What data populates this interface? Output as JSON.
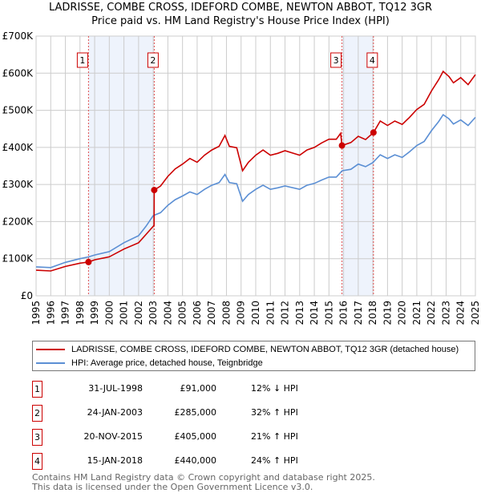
{
  "chart_data": {
    "type": "line",
    "title": "LADRISSE, COMBE CROSS, IDEFORD COMBE, NEWTON ABBOT, TQ12 3GR",
    "subtitle": "Price paid vs. HM Land Registry's House Price Index (HPI)",
    "xlim": [
      1995,
      2025
    ],
    "ylim": [
      0,
      700000
    ],
    "x_ticks": [
      "1995",
      "1996",
      "1997",
      "1998",
      "1999",
      "2000",
      "2001",
      "2002",
      "2003",
      "2004",
      "2005",
      "2006",
      "2007",
      "2008",
      "2009",
      "2010",
      "2011",
      "2012",
      "2013",
      "2014",
      "2015",
      "2016",
      "2017",
      "2018",
      "2019",
      "2020",
      "2021",
      "2022",
      "2023",
      "2024",
      "2025"
    ],
    "y_ticks": [
      {
        "v": 0,
        "label": "£0"
      },
      {
        "v": 100000,
        "label": "£100K"
      },
      {
        "v": 200000,
        "label": "£200K"
      },
      {
        "v": 300000,
        "label": "£300K"
      },
      {
        "v": 400000,
        "label": "£400K"
      },
      {
        "v": 500000,
        "label": "£500K"
      },
      {
        "v": 600000,
        "label": "£600K"
      },
      {
        "v": 700000,
        "label": "£700K"
      }
    ],
    "grid": true,
    "series": [
      {
        "name": "LADRISSE, COMBE CROSS, IDEFORD COMBE, NEWTON ABBOT, TQ12 3GR (detached house)",
        "color": "#cc0000",
        "x": [
          1995,
          1996,
          1997,
          1998,
          1998.58,
          1999,
          2000,
          2001,
          2002,
          2002.5,
          2003.06,
          2003.07,
          2003.5,
          2004,
          2004.5,
          2005,
          2005.5,
          2006,
          2006.5,
          2007,
          2007.5,
          2007.9,
          2008.2,
          2008.7,
          2009.1,
          2009.5,
          2010,
          2010.5,
          2011,
          2011.5,
          2012,
          2013,
          2013.5,
          2014,
          2014.5,
          2015,
          2015.5,
          2015.8,
          2015.89,
          2016.5,
          2017,
          2017.5,
          2018.04,
          2018.5,
          2019,
          2019.5,
          2020,
          2020.5,
          2021,
          2021.5,
          2022,
          2022.5,
          2022.8,
          2023.2,
          2023.5,
          2024,
          2024.5,
          2025
        ],
        "y": [
          69000,
          67000,
          79000,
          88000,
          91000,
          97000,
          105000,
          126000,
          143000,
          165000,
          190000,
          285000,
          296000,
          322000,
          342000,
          355000,
          370000,
          360000,
          379000,
          393000,
          403000,
          432000,
          403000,
          399000,
          337000,
          360000,
          379000,
          393000,
          379000,
          384000,
          391000,
          379000,
          393000,
          400000,
          412000,
          422000,
          422000,
          438000,
          405000,
          413000,
          430000,
          421000,
          440000,
          471000,
          459000,
          471000,
          462000,
          481000,
          502000,
          516000,
          552000,
          583000,
          605000,
          591000,
          574000,
          588000,
          569000,
          596000
        ]
      },
      {
        "name": "HPI: Average price, detached house, Teignbridge",
        "color": "#5b8fd4",
        "x": [
          1995,
          1996,
          1997,
          1998,
          1998.6,
          1999,
          2000,
          2001,
          2002,
          2002.5,
          2003,
          2003.5,
          2004,
          2004.5,
          2005,
          2005.5,
          2006,
          2006.5,
          2007,
          2007.5,
          2007.9,
          2008.2,
          2008.7,
          2009.1,
          2009.5,
          2010,
          2010.5,
          2011,
          2011.5,
          2012,
          2013,
          2013.5,
          2014,
          2014.5,
          2015,
          2015.5,
          2015.9,
          2016.5,
          2017,
          2017.5,
          2018,
          2018.5,
          2019,
          2019.5,
          2020,
          2020.5,
          2021,
          2021.5,
          2022,
          2022.5,
          2022.8,
          2023.2,
          2023.5,
          2024,
          2024.5,
          2025
        ],
        "y": [
          78000,
          76000,
          90000,
          100000,
          105000,
          110000,
          119000,
          143000,
          162000,
          187000,
          216000,
          224000,
          244000,
          259000,
          269000,
          280000,
          273000,
          287000,
          298000,
          305000,
          327000,
          305000,
          302000,
          255000,
          273000,
          287000,
          298000,
          287000,
          291000,
          296000,
          287000,
          298000,
          303000,
          312000,
          320000,
          320000,
          337000,
          341000,
          355000,
          348000,
          359000,
          380000,
          370000,
          380000,
          373000,
          388000,
          405000,
          416000,
          445000,
          470000,
          488000,
          477000,
          463000,
          474000,
          459000,
          481000
        ]
      }
    ],
    "sales": [
      {
        "n": "1",
        "date": "31-JUL-1998",
        "x": 1998.58,
        "price": 91000,
        "price_label": "£91,000",
        "hpi": "12% ↓ HPI"
      },
      {
        "n": "2",
        "date": "24-JAN-2003",
        "x": 2003.07,
        "price": 285000,
        "price_label": "£285,000",
        "hpi": "32% ↑ HPI"
      },
      {
        "n": "3",
        "date": "20-NOV-2015",
        "x": 2015.89,
        "price": 405000,
        "price_label": "£405,000",
        "hpi": "21% ↑ HPI"
      },
      {
        "n": "4",
        "date": "15-JAN-2018",
        "x": 2018.04,
        "price": 440000,
        "price_label": "£440,000",
        "hpi": "24% ↑ HPI"
      }
    ],
    "shaded_ranges": [
      [
        1998.58,
        2003.07
      ],
      [
        2015.89,
        2018.04
      ]
    ],
    "legend_placement": "below"
  },
  "footer": {
    "line1": "Contains HM Land Registry data © Crown copyright and database right 2025.",
    "line2": "This data is licensed under the Open Government Licence v3.0."
  }
}
